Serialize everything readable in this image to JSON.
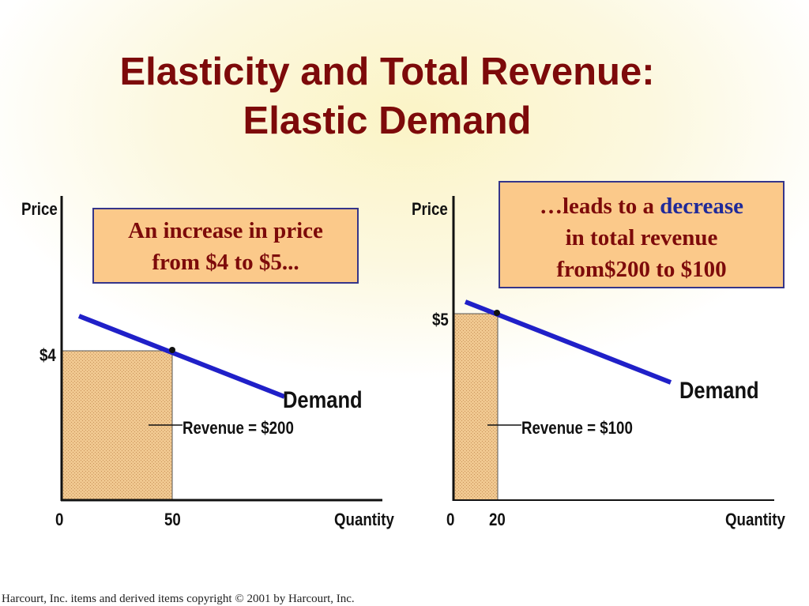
{
  "title": {
    "line1": "Elasticity and Total Revenue:",
    "line2": "Elastic Demand"
  },
  "colors": {
    "title": "#7d0a0a",
    "callout_fill": "#fbc98a",
    "callout_border": "#35358a",
    "demand_line": "#2020c8",
    "highlight_text": "#1f2a9a",
    "revenue_fill": "#f0c890"
  },
  "chart_data": [
    {
      "type": "line",
      "ylabel": "Price",
      "xlabel": "Quantity",
      "x_ticks": [
        "0",
        "50"
      ],
      "y_ticks": [
        "$4"
      ],
      "series": [
        {
          "name": "Demand",
          "label": "Demand"
        }
      ],
      "point": {
        "price": 4,
        "quantity": 50
      },
      "revenue_label": "Revenue = $200",
      "callout": {
        "line1": "An increase in price",
        "line2": "from $4 to $5..."
      }
    },
    {
      "type": "line",
      "ylabel": "Price",
      "xlabel": "Quantity",
      "x_ticks": [
        "0",
        "20"
      ],
      "y_ticks": [
        "$5"
      ],
      "series": [
        {
          "name": "Demand",
          "label": "Demand"
        }
      ],
      "point": {
        "price": 5,
        "quantity": 20
      },
      "revenue_label": "Revenue = $100",
      "callout": {
        "prefix": "…leads to a ",
        "highlight": "decrease",
        "line2": "in total revenue",
        "line3": "from$200 to $100"
      }
    }
  ],
  "footer": "Harcourt, Inc. items and derived items copyright © 2001 by Harcourt, Inc."
}
